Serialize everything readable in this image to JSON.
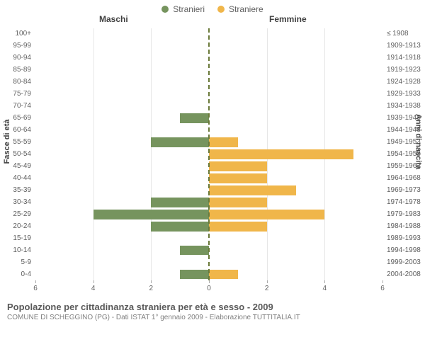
{
  "legend": {
    "male": {
      "label": "Stranieri",
      "color": "#76945e"
    },
    "female": {
      "label": "Straniere",
      "color": "#f0b64a"
    }
  },
  "headers": {
    "left": "Maschi",
    "right": "Femmine"
  },
  "axis_titles": {
    "left": "Fasce di età",
    "right": "Anni di nascita"
  },
  "chart": {
    "type": "population-pyramid",
    "xlim": 6,
    "xticks": [
      6,
      4,
      2,
      0,
      2,
      4,
      6
    ],
    "grid_color": "#e6e6e6",
    "center_line_color": "#6b7a3a",
    "background_color": "#ffffff",
    "bar_left_color": "#76945e",
    "bar_right_color": "#f0b64a",
    "label_fontsize": 10,
    "rows": [
      {
        "age": "100+",
        "birth": "≤ 1908",
        "m": 0,
        "f": 0
      },
      {
        "age": "95-99",
        "birth": "1909-1913",
        "m": 0,
        "f": 0
      },
      {
        "age": "90-94",
        "birth": "1914-1918",
        "m": 0,
        "f": 0
      },
      {
        "age": "85-89",
        "birth": "1919-1923",
        "m": 0,
        "f": 0
      },
      {
        "age": "80-84",
        "birth": "1924-1928",
        "m": 0,
        "f": 0
      },
      {
        "age": "75-79",
        "birth": "1929-1933",
        "m": 0,
        "f": 0
      },
      {
        "age": "70-74",
        "birth": "1934-1938",
        "m": 0,
        "f": 0
      },
      {
        "age": "65-69",
        "birth": "1939-1943",
        "m": 1,
        "f": 0
      },
      {
        "age": "60-64",
        "birth": "1944-1948",
        "m": 0,
        "f": 0
      },
      {
        "age": "55-59",
        "birth": "1949-1953",
        "m": 2,
        "f": 1
      },
      {
        "age": "50-54",
        "birth": "1954-1958",
        "m": 0,
        "f": 5
      },
      {
        "age": "45-49",
        "birth": "1959-1963",
        "m": 0,
        "f": 2
      },
      {
        "age": "40-44",
        "birth": "1964-1968",
        "m": 0,
        "f": 2
      },
      {
        "age": "35-39",
        "birth": "1969-1973",
        "m": 0,
        "f": 3
      },
      {
        "age": "30-34",
        "birth": "1974-1978",
        "m": 2,
        "f": 2
      },
      {
        "age": "25-29",
        "birth": "1979-1983",
        "m": 4,
        "f": 4
      },
      {
        "age": "20-24",
        "birth": "1984-1988",
        "m": 2,
        "f": 2
      },
      {
        "age": "15-19",
        "birth": "1989-1993",
        "m": 0,
        "f": 0
      },
      {
        "age": "10-14",
        "birth": "1994-1998",
        "m": 1,
        "f": 0
      },
      {
        "age": "5-9",
        "birth": "1999-2003",
        "m": 0,
        "f": 0
      },
      {
        "age": "0-4",
        "birth": "2004-2008",
        "m": 1,
        "f": 1
      }
    ]
  },
  "caption": {
    "title": "Popolazione per cittadinanza straniera per età e sesso - 2009",
    "subtitle": "COMUNE DI SCHEGGINO (PG) - Dati ISTAT 1° gennaio 2009 - Elaborazione TUTTITALIA.IT"
  }
}
